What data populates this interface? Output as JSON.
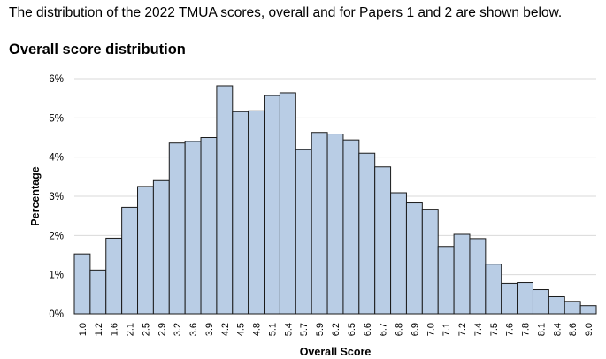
{
  "page": {
    "intro_text": "The distribution of the 2022 TMUA scores, overall and for Papers 1 and 2 are shown below.",
    "heading": "Overall score distribution"
  },
  "chart_data": {
    "type": "bar",
    "title": "",
    "xlabel": "Overall Score",
    "ylabel": "Percentage",
    "ylim": [
      0,
      6
    ],
    "yticks": [
      "0%",
      "1%",
      "2%",
      "3%",
      "4%",
      "5%",
      "6%"
    ],
    "grid": true,
    "categories": [
      "1.0",
      "1.2",
      "1.6",
      "2.1",
      "2.5",
      "2.9",
      "3.2",
      "3.6",
      "3.9",
      "4.2",
      "4.5",
      "4.8",
      "5.1",
      "5.4",
      "5.7",
      "5.9",
      "6.2",
      "6.5",
      "6.6",
      "6.7",
      "6.8",
      "6.9",
      "7.0",
      "7.1",
      "7.2",
      "7.4",
      "7.5",
      "7.6",
      "7.8",
      "8.1",
      "8.4",
      "8.6",
      "9.0"
    ],
    "values": [
      1.53,
      1.12,
      1.93,
      2.72,
      3.25,
      3.4,
      4.36,
      4.4,
      4.5,
      5.82,
      5.16,
      5.18,
      5.57,
      5.64,
      4.19,
      4.63,
      4.59,
      4.44,
      4.1,
      3.75,
      3.09,
      2.83,
      2.67,
      1.72,
      2.03,
      1.92,
      1.27,
      0.78,
      0.8,
      0.62,
      0.44,
      0.32,
      0.21
    ],
    "bar_color": "#b9cde5",
    "bar_edge_color": "#1a1a1a"
  }
}
